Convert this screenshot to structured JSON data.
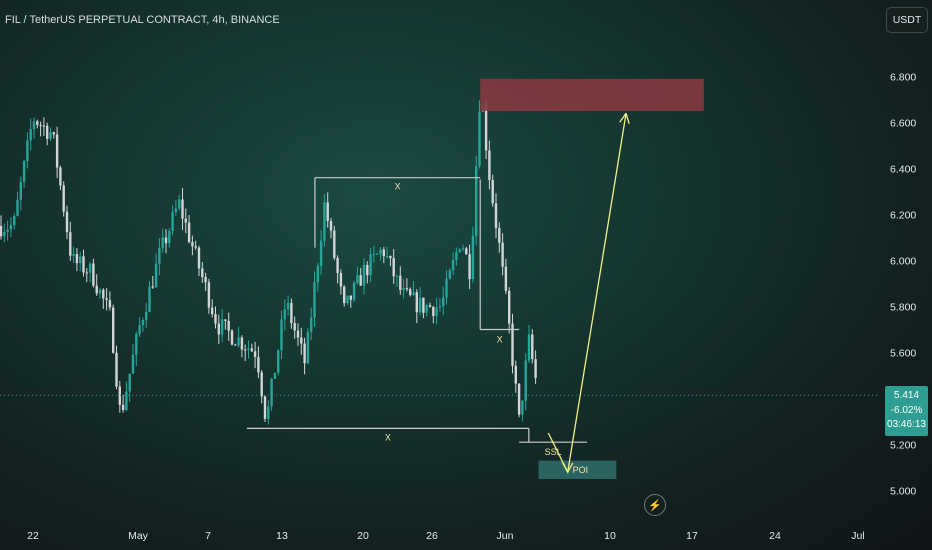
{
  "header": {
    "title": "FIL / TetherUS PERPETUAL CONTRACT, 4h, BINANCE"
  },
  "toolbar": {
    "currency_label": "USDT"
  },
  "price_label": {
    "price": "5.414",
    "change": "-6.02%",
    "countdown": "03:46:13"
  },
  "icons": {
    "replay": "lightning-icon"
  },
  "colors": {
    "up": "#26a69a",
    "down": "#d3d6d8",
    "supply_zone": "#8b3942",
    "poi_zone": "#2f6e6a",
    "projection": "#f1f08a",
    "range_lines": "#c9ccce"
  },
  "chart_data": {
    "type": "candlestick",
    "symbol": "FIL / TetherUS PERPETUAL CONTRACT",
    "timeframe": "4h",
    "exchange": "BINANCE",
    "y_ticks": [
      "6.800",
      "6.600",
      "6.400",
      "6.200",
      "6.000",
      "5.800",
      "5.600",
      "5.400",
      "5.200",
      "5.000"
    ],
    "ylim": [
      4.93,
      6.92
    ],
    "x_ticks": [
      "22",
      "May",
      "7",
      "13",
      "20",
      "26",
      "Jun",
      "10",
      "17",
      "24",
      "Jul"
    ],
    "series": [
      {
        "x": "Apr 20",
        "y": 6.15
      },
      {
        "x": "Apr 22",
        "y": 6.62
      },
      {
        "x": "Apr 24",
        "y": 6.55
      },
      {
        "x": "Apr 26",
        "y": 6.0
      },
      {
        "x": "Apr 28",
        "y": 5.95
      },
      {
        "x": "Apr 30",
        "y": 5.75
      },
      {
        "x": "May 1",
        "y": 5.32
      },
      {
        "x": "May 3",
        "y": 5.72
      },
      {
        "x": "May 5",
        "y": 6.02
      },
      {
        "x": "May 7",
        "y": 6.25
      },
      {
        "x": "May 9",
        "y": 5.98
      },
      {
        "x": "May 11",
        "y": 5.72
      },
      {
        "x": "May 13",
        "y": 5.66
      },
      {
        "x": "May 15",
        "y": 5.6
      },
      {
        "x": "May 16",
        "y": 5.3
      },
      {
        "x": "May 18",
        "y": 5.82
      },
      {
        "x": "May 20",
        "y": 5.55
      },
      {
        "x": "May 22",
        "y": 6.25
      },
      {
        "x": "May 24",
        "y": 5.78
      },
      {
        "x": "May 26",
        "y": 5.95
      },
      {
        "x": "May 28",
        "y": 6.05
      },
      {
        "x": "May 30",
        "y": 5.85
      },
      {
        "x": "Jun 1",
        "y": 5.8
      },
      {
        "x": "Jun 3",
        "y": 5.8
      },
      {
        "x": "Jun 5",
        "y": 6.1
      },
      {
        "x": "Jun 6",
        "y": 5.95
      },
      {
        "x": "Jun 7",
        "y": 6.75
      },
      {
        "x": "Jun 8",
        "y": 6.35
      },
      {
        "x": "Jun 9",
        "y": 6.05
      },
      {
        "x": "Jun 10",
        "y": 5.7
      },
      {
        "x": "Jun 11",
        "y": 5.3
      },
      {
        "x": "Jun 12",
        "y": 5.65
      },
      {
        "x": "Jun 13",
        "y": 5.414
      }
    ],
    "last_price": 5.414,
    "annotations": [
      {
        "type": "range-top",
        "label": "X",
        "from": "May 21",
        "to": "Jun 7",
        "y": 6.36
      },
      {
        "type": "range-bottom",
        "label": "X",
        "from": "May 14",
        "to": "Jun 12",
        "y": 5.27
      },
      {
        "type": "level",
        "label": "X",
        "from": "Jun 7",
        "to": "Jun 11",
        "y": 5.7
      },
      {
        "type": "level",
        "label": "SSL",
        "from": "Jun 11",
        "to": "Jun 18",
        "y": 5.21
      },
      {
        "type": "zone",
        "label": "POI",
        "from": "Jun 13",
        "to": "Jun 21",
        "y_low": 5.05,
        "y_high": 5.13
      },
      {
        "type": "zone",
        "label": "",
        "from": "Jun 7",
        "to": "Jun 30",
        "y_low": 6.65,
        "y_high": 6.79
      },
      {
        "type": "projection",
        "label": "",
        "path": [
          [
            "Jun 14",
            5.25
          ],
          [
            "Jun 16",
            5.08
          ],
          [
            "Jun 22",
            6.64
          ]
        ]
      }
    ],
    "grid": false
  }
}
